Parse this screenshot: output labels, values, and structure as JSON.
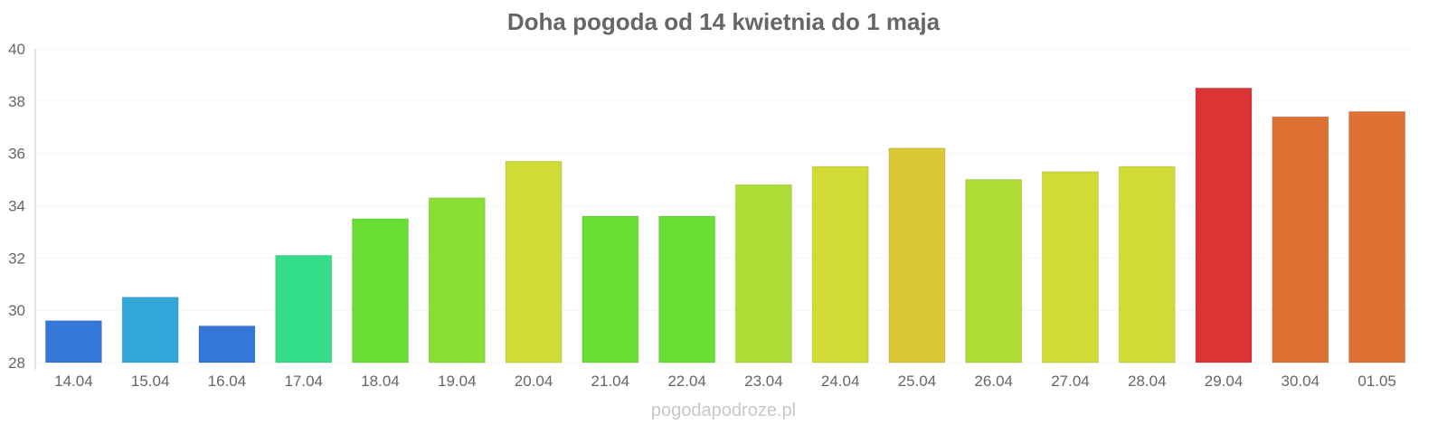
{
  "chart_data": {
    "type": "bar",
    "title": "Doha pogoda od 14 kwietnia do 1 maja",
    "xlabel": "",
    "ylabel": "",
    "ylim": [
      28,
      40
    ],
    "yticks": [
      28,
      30,
      32,
      34,
      36,
      38,
      40
    ],
    "grid": true,
    "categories": [
      "14.04",
      "15.04",
      "16.04",
      "17.04",
      "18.04",
      "19.04",
      "20.04",
      "21.04",
      "22.04",
      "23.04",
      "24.04",
      "25.04",
      "26.04",
      "27.04",
      "28.04",
      "29.04",
      "30.04",
      "01.05"
    ],
    "values": [
      29.6,
      30.5,
      29.4,
      32.1,
      33.5,
      34.3,
      35.7,
      33.6,
      33.6,
      34.8,
      35.5,
      36.2,
      35.0,
      35.3,
      35.5,
      38.5,
      37.4,
      37.6
    ],
    "colors": [
      "#3477d9",
      "#34a7d9",
      "#3477d9",
      "#34dd8a",
      "#6ade34",
      "#8ade34",
      "#d0dc34",
      "#6ade34",
      "#6ade34",
      "#addd34",
      "#d0dc34",
      "#dbc834",
      "#addd34",
      "#d0dc34",
      "#d0dc34",
      "#da3434",
      "#de7034",
      "#de7034"
    ]
  },
  "watermark": "pogodapodroze.pl"
}
